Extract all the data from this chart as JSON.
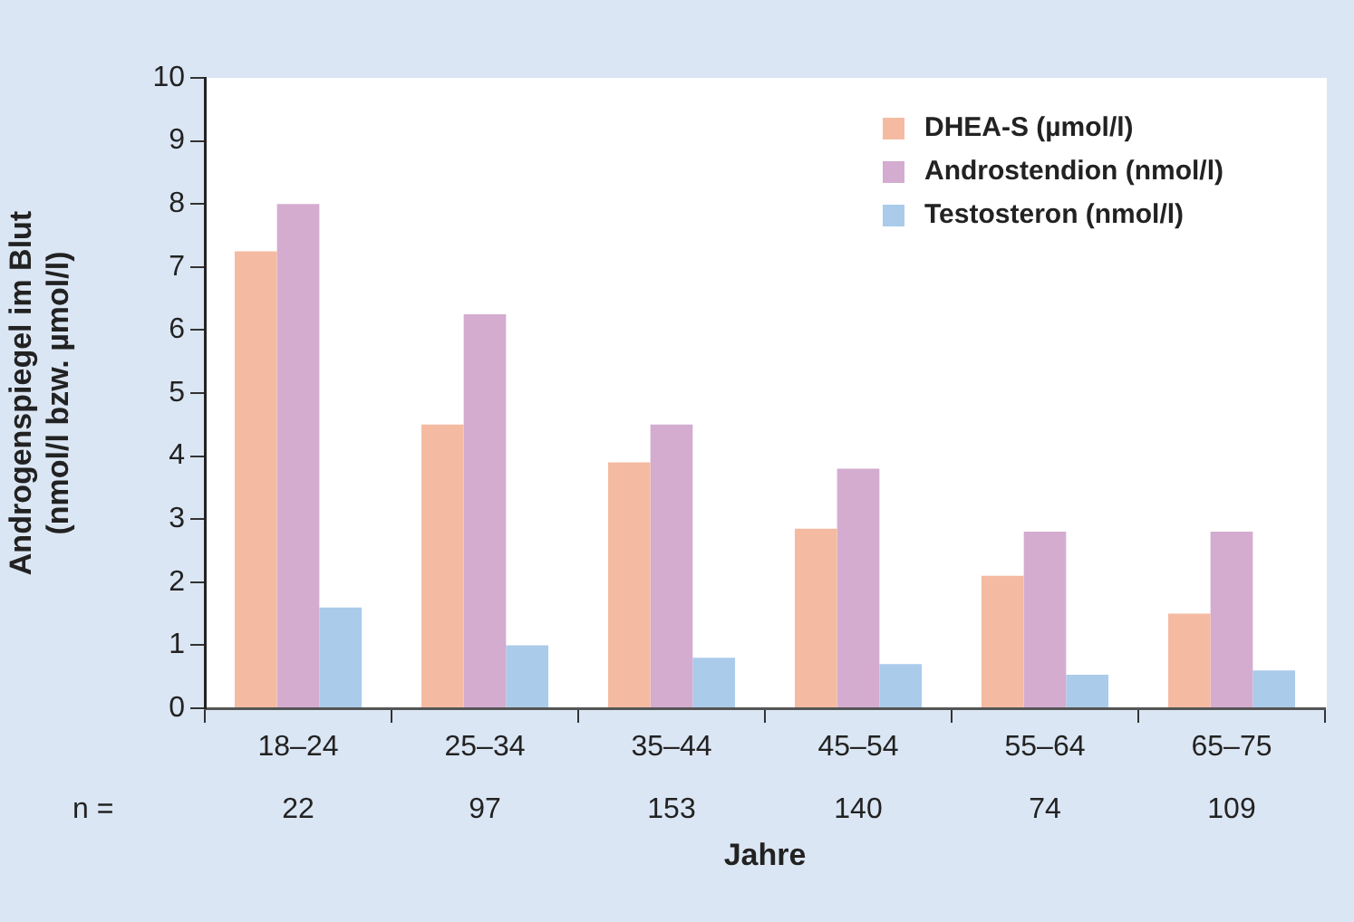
{
  "chart_data": {
    "type": "bar",
    "xlabel": "Jahre",
    "ylabel": "Androgenspiegel im Blut (nmol/l bzw. µmol/l)",
    "categories": [
      "18–24",
      "25–34",
      "35–44",
      "45–54",
      "55–64",
      "65–75"
    ],
    "series": [
      {
        "name": "DHEA-S (µmol/l)",
        "color": "#f4bba2",
        "values": [
          7.25,
          4.5,
          3.9,
          2.85,
          2.1,
          1.5
        ]
      },
      {
        "name": "Androstendion (nmol/l)",
        "color": "#d4acd0",
        "values": [
          8,
          6.25,
          4.5,
          3.8,
          2.8,
          2.8
        ]
      },
      {
        "name": "Testosteron (nmol/l)",
        "color": "#aacbea",
        "values": [
          1.6,
          1,
          0.8,
          0.7,
          0.53,
          0.6
        ]
      }
    ],
    "ylim": [
      0,
      10
    ],
    "yticks": [
      0,
      1,
      2,
      3,
      4,
      5,
      6,
      7,
      8,
      9,
      10
    ],
    "grid": false,
    "legend": "top right",
    "annotations": [
      "n =",
      "22",
      "97",
      "153",
      "140",
      "74",
      "109"
    ]
  }
}
